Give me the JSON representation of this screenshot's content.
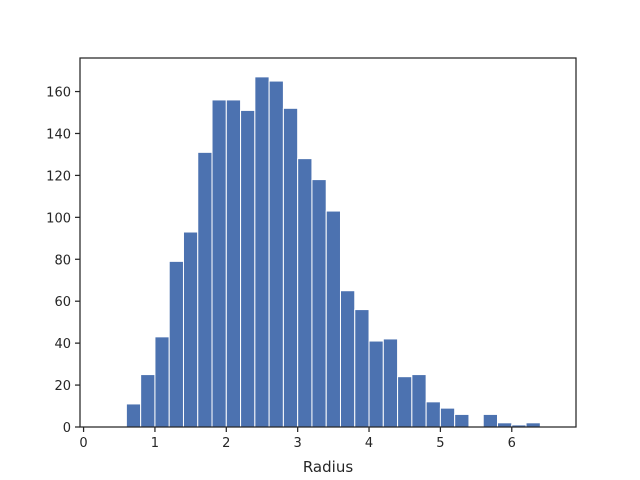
{
  "chart_data": {
    "type": "bar",
    "xlabel": "Radius",
    "ylabel": "",
    "xlim": [
      -0.05,
      6.9
    ],
    "ylim": [
      0,
      176
    ],
    "xticks": [
      0,
      1,
      2,
      3,
      4,
      5,
      6
    ],
    "yticks": [
      0,
      20,
      40,
      60,
      80,
      100,
      120,
      140,
      160
    ],
    "bar_color": "#4c72b0",
    "bin_edges": [
      0.0,
      0.2,
      0.4,
      0.6,
      0.8,
      1.0,
      1.2,
      1.4,
      1.6,
      1.8,
      2.0,
      2.2,
      2.4,
      2.6,
      2.8,
      3.0,
      3.2,
      3.4,
      3.6,
      3.8,
      4.0,
      4.2,
      4.4,
      4.6,
      4.8,
      5.0,
      5.2,
      5.4,
      5.6,
      5.8,
      6.0,
      6.2,
      6.4,
      6.6
    ],
    "counts": [
      0,
      0,
      0,
      11,
      25,
      43,
      79,
      93,
      131,
      156,
      156,
      151,
      167,
      165,
      152,
      128,
      118,
      103,
      65,
      56,
      41,
      42,
      24,
      25,
      12,
      9,
      6,
      0,
      6,
      2,
      1,
      2,
      0,
      1
    ],
    "grid": false,
    "legend": "none"
  }
}
